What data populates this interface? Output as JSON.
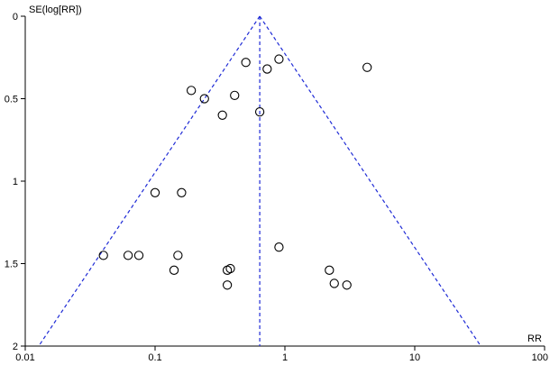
{
  "chart_data": {
    "type": "scatter",
    "title": "",
    "xlabel": "RR",
    "ylabel": "SE(log[RR])",
    "x_scale": "log",
    "xlim": [
      0.01,
      100
    ],
    "ylim": [
      0,
      2
    ],
    "y_inverted": true,
    "x_ticks": [
      {
        "value": 0.01,
        "label": "0.01"
      },
      {
        "value": 0.1,
        "label": "0.1"
      },
      {
        "value": 1,
        "label": "1"
      },
      {
        "value": 10,
        "label": "10"
      },
      {
        "value": 100,
        "label": "100"
      }
    ],
    "y_ticks": [
      {
        "value": 0,
        "label": "0"
      },
      {
        "value": 0.5,
        "label": "0.5"
      },
      {
        "value": 1,
        "label": "1"
      },
      {
        "value": 1.5,
        "label": "1.5"
      },
      {
        "value": 2,
        "label": "2"
      }
    ],
    "pooled_rr": 0.64,
    "funnel_z": 1.96,
    "grid": false,
    "legend": "none",
    "colors": {
      "points": "#000000",
      "funnel": "#1f2bd6",
      "axes": "#000000"
    },
    "points": [
      {
        "x": 0.5,
        "y": 0.28
      },
      {
        "x": 0.9,
        "y": 0.26
      },
      {
        "x": 0.73,
        "y": 0.32
      },
      {
        "x": 4.3,
        "y": 0.31
      },
      {
        "x": 0.19,
        "y": 0.45
      },
      {
        "x": 0.24,
        "y": 0.5
      },
      {
        "x": 0.41,
        "y": 0.48
      },
      {
        "x": 0.33,
        "y": 0.6
      },
      {
        "x": 0.64,
        "y": 0.58
      },
      {
        "x": 0.1,
        "y": 1.07
      },
      {
        "x": 0.16,
        "y": 1.07
      },
      {
        "x": 0.04,
        "y": 1.45
      },
      {
        "x": 0.062,
        "y": 1.45
      },
      {
        "x": 0.075,
        "y": 1.45
      },
      {
        "x": 0.15,
        "y": 1.45
      },
      {
        "x": 0.14,
        "y": 1.54
      },
      {
        "x": 0.36,
        "y": 1.54
      },
      {
        "x": 0.38,
        "y": 1.53
      },
      {
        "x": 0.36,
        "y": 1.63
      },
      {
        "x": 0.9,
        "y": 1.4
      },
      {
        "x": 2.2,
        "y": 1.54
      },
      {
        "x": 2.4,
        "y": 1.62
      },
      {
        "x": 3.0,
        "y": 1.63
      }
    ]
  }
}
